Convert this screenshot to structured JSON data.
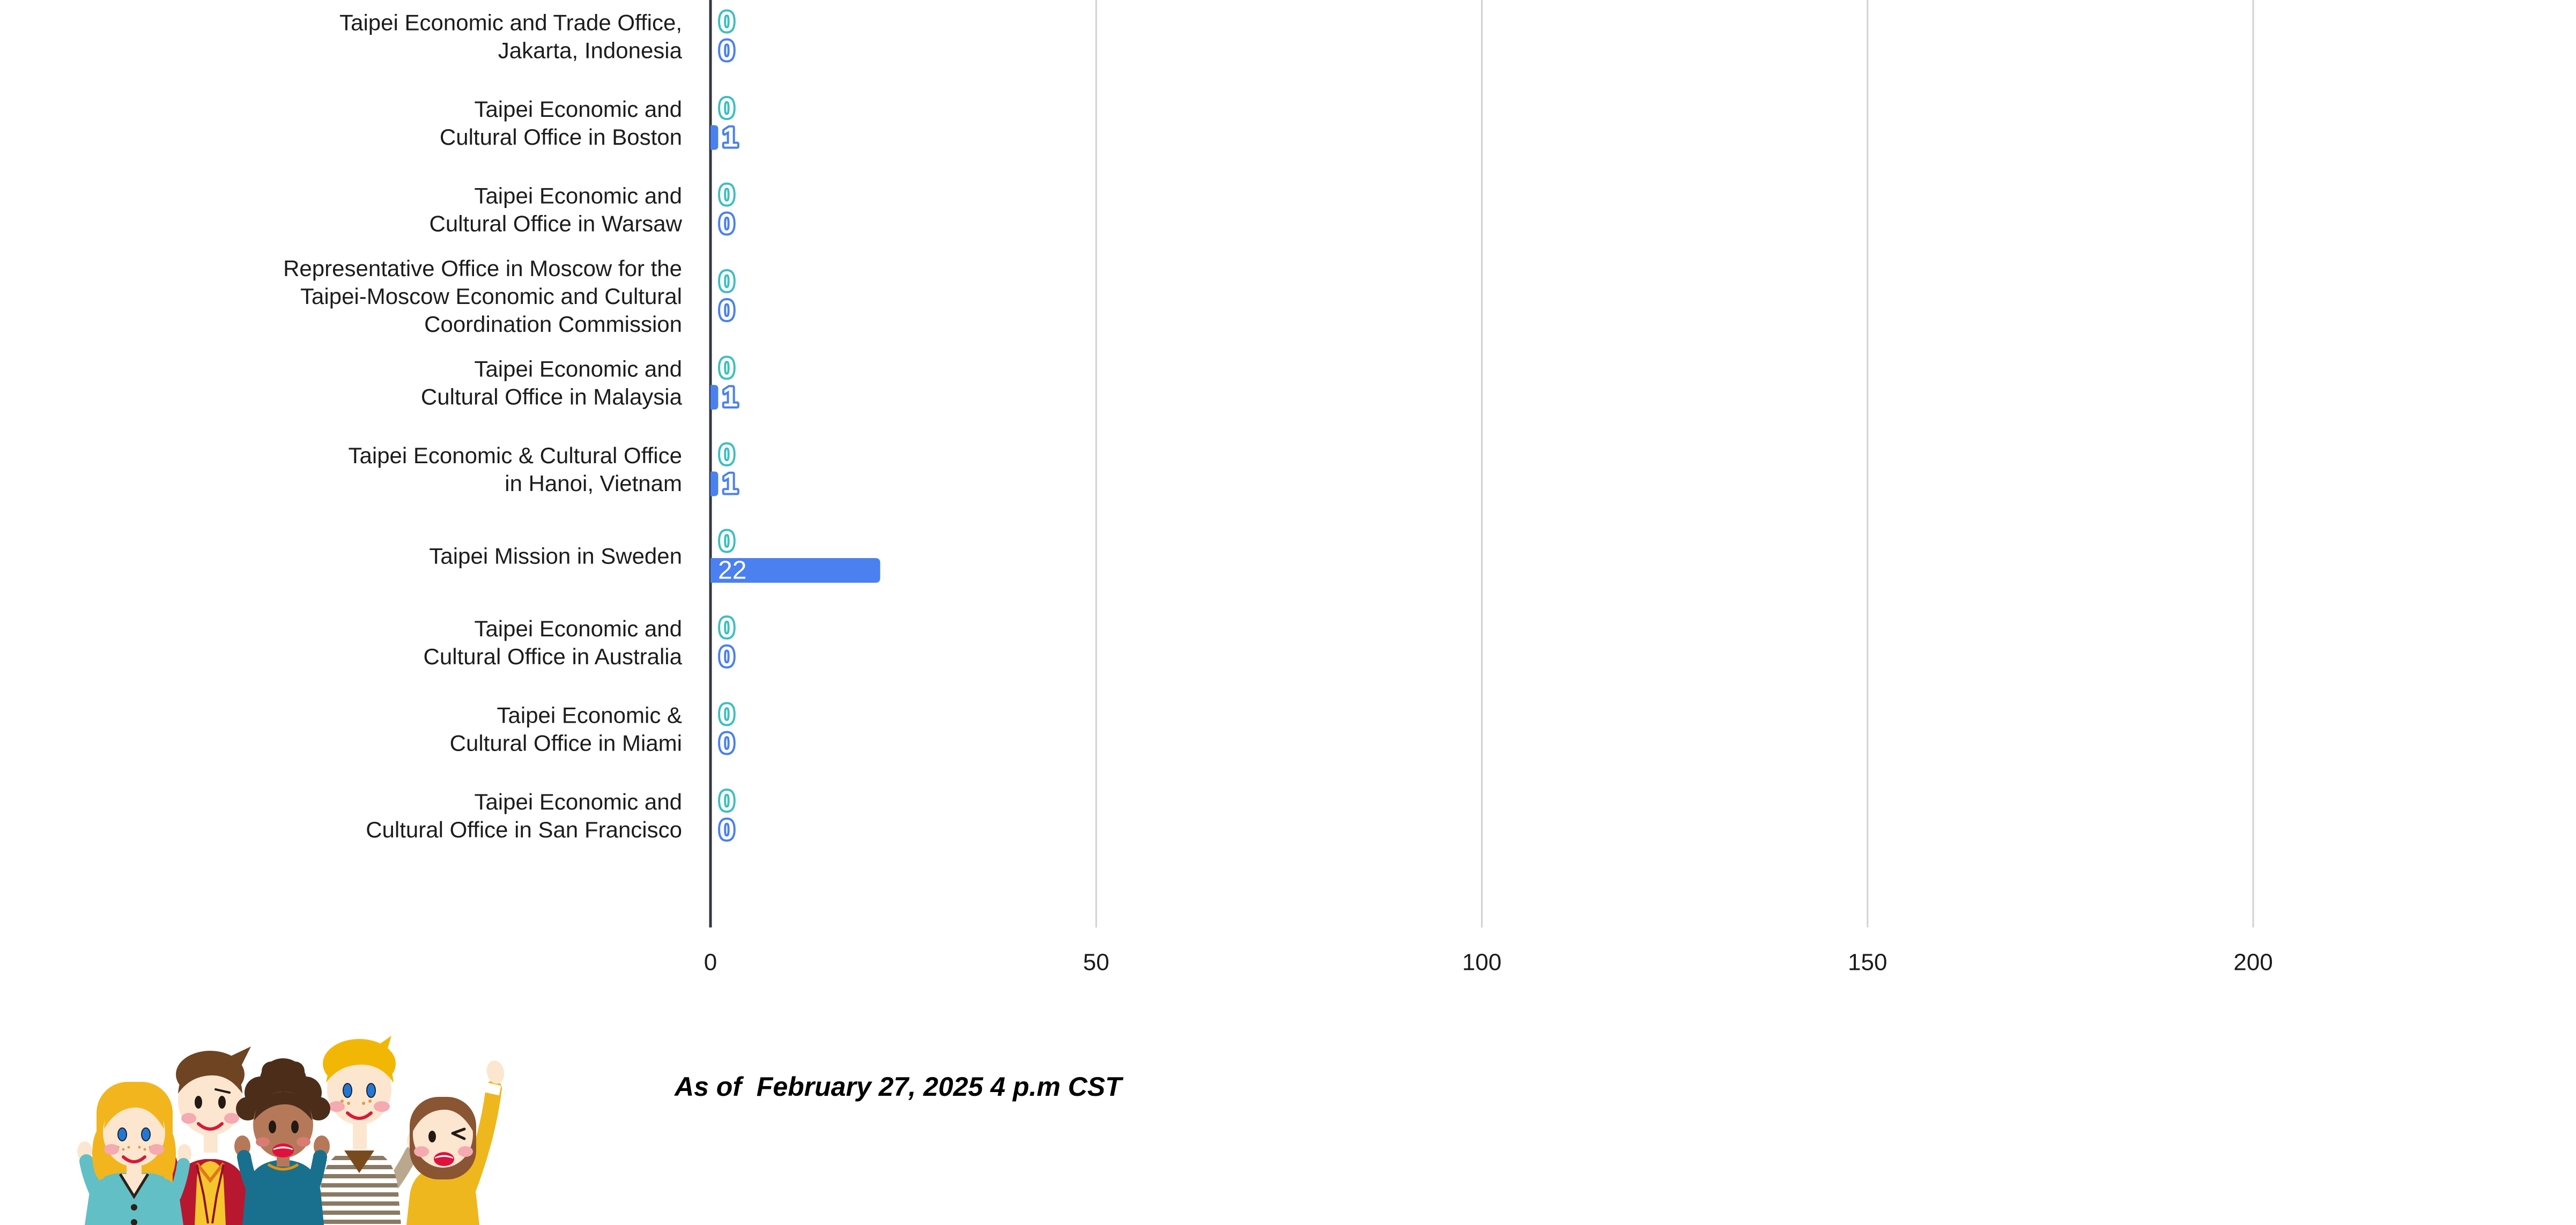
{
  "chart_data": {
    "type": "bar",
    "orientation": "horizontal",
    "title": "",
    "xlabel": "",
    "ylabel": "",
    "legend": "none",
    "grid": "vertical-gridlines",
    "x_ticks": [
      0,
      50,
      100,
      150,
      200
    ],
    "xlim": [
      0,
      240
    ],
    "categories": [
      {
        "label_lines": [
          "Taipei Economic and Trade Office,",
          "Jakarta, Indonesia"
        ]
      },
      {
        "label_lines": [
          "Taipei Economic and",
          "Cultural Office in Boston"
        ]
      },
      {
        "label_lines": [
          "Taipei Economic and",
          "Cultural Office in Warsaw"
        ]
      },
      {
        "label_lines": [
          "Representative Office in Moscow for the",
          "Taipei-Moscow Economic and Cultural",
          "Coordination Commission"
        ]
      },
      {
        "label_lines": [
          "Taipei Economic and",
          "Cultural Office in Malaysia"
        ]
      },
      {
        "label_lines": [
          "Taipei Economic & Cultural Office",
          "in Hanoi, Vietnam"
        ]
      },
      {
        "label_lines": [
          "Taipei Mission in Sweden"
        ]
      },
      {
        "label_lines": [
          "Taipei Economic and",
          "Cultural Office in Australia"
        ]
      },
      {
        "label_lines": [
          "Taipei Economic &",
          "Cultural Office in Miami"
        ]
      },
      {
        "label_lines": [
          "Taipei Economic and",
          "Cultural Office in San Francisco"
        ]
      }
    ],
    "series": [
      {
        "name": "series-teal",
        "color": "#3EBEC3",
        "values": [
          0,
          0,
          0,
          0,
          0,
          0,
          0,
          0,
          0,
          0
        ]
      },
      {
        "name": "series-blue",
        "color": "#4A80F0",
        "values": [
          0,
          1,
          0,
          0,
          1,
          1,
          22,
          0,
          0,
          0
        ]
      }
    ]
  },
  "caption": {
    "as_of_text": "As of  February 27, 2025 4 p.m CST"
  },
  "illustration": {
    "name": "waving-people-illustration"
  },
  "colors": {
    "axis_line": "#33383D",
    "gridline": "#D2D2D2",
    "label_text": "#1C1C1C",
    "tick_text": "#1B1B1B",
    "bar_inside_value_text": "#FFFFFF"
  }
}
